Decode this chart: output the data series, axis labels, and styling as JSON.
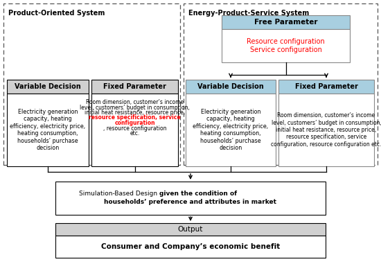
{
  "bg_color": "#ffffff",
  "light_blue": "#a8cfe0",
  "light_gray": "#d0d0d0",
  "white": "#ffffff",
  "dashed_color": "#555555",
  "pos_system_label": "Product-Oriented System",
  "epss_label": "Energy-Product-Service System",
  "free_param_title": "Free Parameter",
  "free_param_body_red": "Resource configuration\nService configuration",
  "var_dec_left_title": "Variable Decision",
  "var_dec_left_body": "Electricity generation\ncapacity, heating\nefficiency, electricity price,\nheating consumption,\nhouseholds’ purchase\ndecision",
  "fixed_param_left_title": "Fixed Parameter",
  "fixed_param_left_normal1": "Room dimension, customer’s income\nlevel, customers’ budget in consumption,\ninitial heat resistance, resource price,\n",
  "fixed_param_left_red": "resource specification, service\nconfiguration",
  "fixed_param_left_normal2": ", resource configuration\netc.",
  "var_dec_right_title": "Variable Decision",
  "var_dec_right_body": "Electricity generation\ncapacity, heating\nefficiency, electricity price,\nheating consumption,\nhouseholds’ purchase\ndecision",
  "fixed_param_right_title": "Fixed Parameter",
  "fixed_param_right_body": "Room dimension, customer’s income\nlevel, customers’ budget in consumption,\ninitial heat resistance, resource price,\nresource specification, service\nconfiguration, resource configuration etc.",
  "sim_normal": "Simulation-Based Design ",
  "sim_bold": "given the condition of\nhouseholds’ preference and attributes in market",
  "output_title": "Output",
  "output_body": "Consumer and Company’s economic benefit"
}
